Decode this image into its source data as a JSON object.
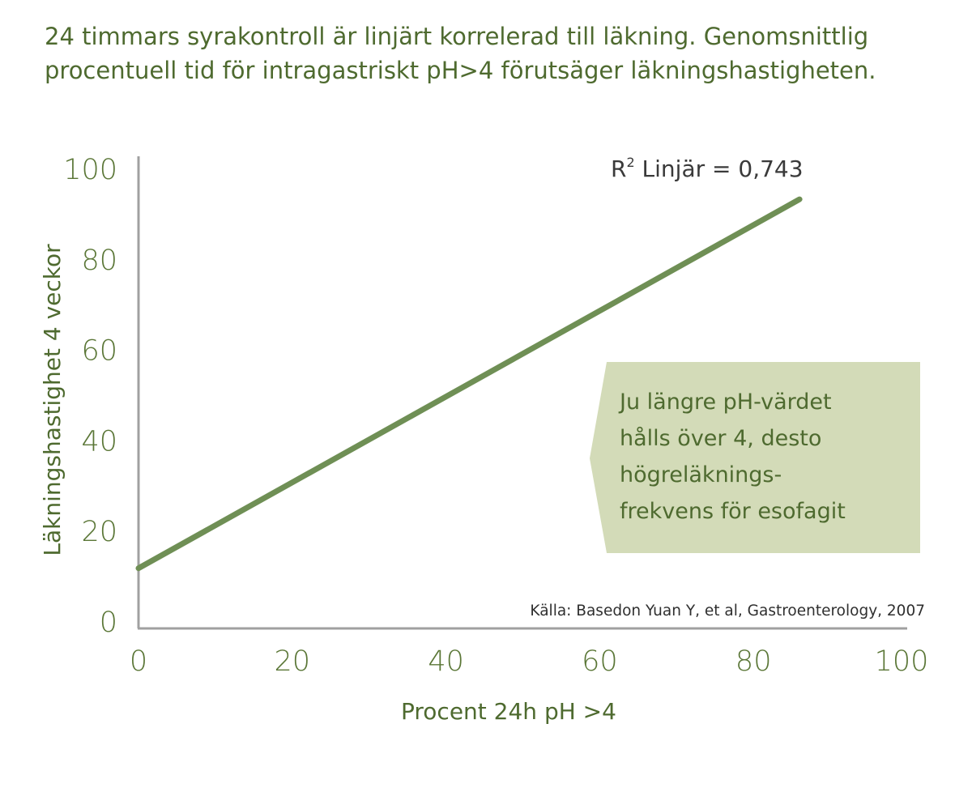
{
  "title_lines": [
    "24 timmars syrakontroll är linjärt korrelerad till läkning. Genomsnittlig",
    "procentuell tid för intragastriskt pH>4 förutsäger läkningshastigheten."
  ],
  "chart_data": {
    "type": "line",
    "xlabel": "Procent 24h pH >4",
    "ylabel": "Läkningshastighet 4 veckor",
    "xlim": [
      0,
      100
    ],
    "ylim": [
      0,
      100
    ],
    "xticks": [
      "0",
      "20",
      "40",
      "60",
      "80",
      "100"
    ],
    "yticks": [
      "0",
      "20",
      "40",
      "60",
      "80",
      "100"
    ],
    "grid": false,
    "series": [
      {
        "color": "#6f8f55",
        "x": [
          0,
          86
        ],
        "y": [
          11.5,
          93
        ]
      }
    ],
    "annotation": {
      "r2_prefix": "R",
      "r2_superscript": "2",
      "r2_text": " Linjär = 0,743"
    }
  },
  "callout": {
    "lines": [
      "Ju längre pH-värdet",
      "hålls över 4, desto",
      "högreläknings-",
      "frekvens för esofagit"
    ],
    "background": "#d3dbb8"
  },
  "source": "Källa: Basedon Yuan Y, et al, Gastroenterology, 2007",
  "colors": {
    "text": "#4e6a2f",
    "line": "#6f8f55",
    "axis": "#a0a0a0"
  }
}
